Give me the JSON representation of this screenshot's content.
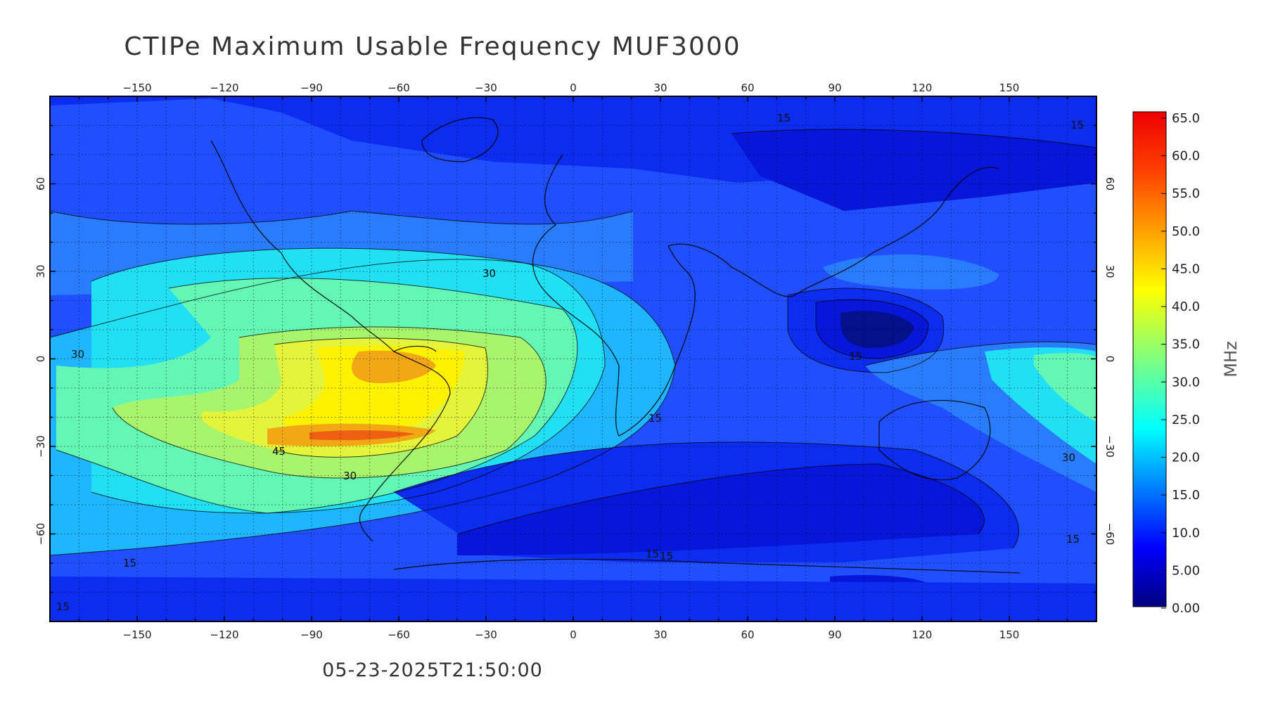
{
  "title": "CTIPe Maximum Usable Frequency MUF3000",
  "timestamp": "05-23-2025T21:50:00",
  "map": {
    "projection": "equirectangular",
    "lon_range": [
      -180,
      180
    ],
    "lat_range": [
      -90,
      90
    ],
    "grid": "dotted, 10 degree spacing",
    "lon_ticks": [
      -150,
      -120,
      -90,
      -60,
      -30,
      0,
      30,
      60,
      90,
      120,
      150
    ],
    "lat_ticks": [
      60,
      30,
      0,
      -30,
      -60
    ]
  },
  "colorbar": {
    "unit": "MHz",
    "range": [
      0,
      65
    ],
    "tick_labels": [
      "65.0",
      "60.0",
      "55.0",
      "50.0",
      "45.0",
      "40.0",
      "35.0",
      "30.0",
      "25.0",
      "20.0",
      "15.0",
      "10.0",
      "5.00",
      "0.00"
    ],
    "colormap": "jet",
    "stops": [
      "#00007f",
      "#0000ff",
      "#007fff",
      "#00ffff",
      "#7fff7f",
      "#ffff00",
      "#ff7f00",
      "#ff0000",
      "#7f0000"
    ]
  },
  "contour_labels": [
    {
      "text": "15"
    },
    {
      "text": "15"
    },
    {
      "text": "30"
    },
    {
      "text": "30"
    },
    {
      "text": "45"
    },
    {
      "text": "30"
    },
    {
      "text": "15"
    },
    {
      "text": "15"
    },
    {
      "text": "15"
    },
    {
      "text": "15"
    },
    {
      "text": "15"
    },
    {
      "text": "30"
    },
    {
      "text": "15"
    },
    {
      "text": "15"
    }
  ],
  "features": [
    {
      "name": "MUF maximum over South America",
      "level": "~55 MHz"
    },
    {
      "name": "MUF minimum over Southeast Asia",
      "level": "~5 MHz"
    },
    {
      "name": "MUF minimum Southern Ocean",
      "level": "~5-10 MHz"
    }
  ]
}
